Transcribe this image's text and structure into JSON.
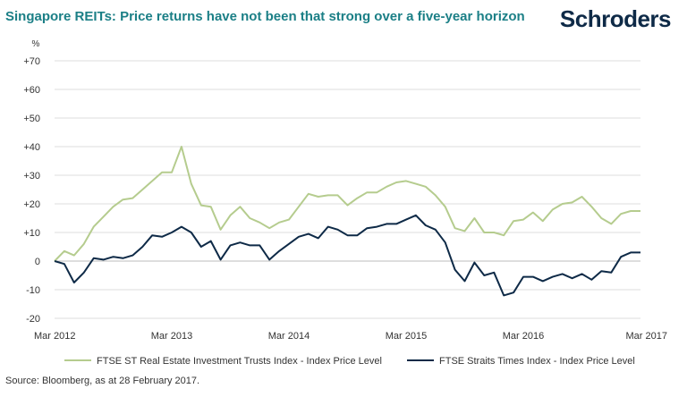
{
  "header": {
    "title": "Singapore REITs: Price returns have not been that strong over a five-year horizon",
    "brand": "Schroders"
  },
  "footer": {
    "source": "Source: Bloomberg, as at 28 February 2017."
  },
  "chart_data": {
    "type": "line",
    "title": "Singapore REITs: Price returns have not been that strong over a five-year horizon",
    "ylabel": "%",
    "ylim": [
      -20,
      70
    ],
    "yticks": [
      -20,
      -10,
      0,
      10,
      20,
      30,
      40,
      50,
      60,
      70
    ],
    "ytick_labels": [
      "-20",
      "-10",
      "0",
      "+10",
      "+20",
      "+30",
      "+40",
      "+50",
      "+60",
      "+70"
    ],
    "xlim": [
      "2012-03",
      "2017-03"
    ],
    "xticks": [
      "2012-03",
      "2013-03",
      "2014-03",
      "2015-03",
      "2016-03",
      "2017-03"
    ],
    "xtick_labels": [
      "Mar 2012",
      "Mar 2013",
      "Mar 2014",
      "Mar 2015",
      "Mar 2016",
      "Mar 2017"
    ],
    "grid": "horizontal",
    "legend_position": "bottom",
    "x": [
      "2012-03",
      "2012-04",
      "2012-05",
      "2012-06",
      "2012-07",
      "2012-08",
      "2012-09",
      "2012-10",
      "2012-11",
      "2012-12",
      "2013-01",
      "2013-02",
      "2013-03",
      "2013-04",
      "2013-05",
      "2013-06",
      "2013-07",
      "2013-08",
      "2013-09",
      "2013-10",
      "2013-11",
      "2013-12",
      "2014-01",
      "2014-02",
      "2014-03",
      "2014-04",
      "2014-05",
      "2014-06",
      "2014-07",
      "2014-08",
      "2014-09",
      "2014-10",
      "2014-11",
      "2014-12",
      "2015-01",
      "2015-02",
      "2015-03",
      "2015-04",
      "2015-05",
      "2015-06",
      "2015-07",
      "2015-08",
      "2015-09",
      "2015-10",
      "2015-11",
      "2015-12",
      "2016-01",
      "2016-02",
      "2016-03",
      "2016-04",
      "2016-05",
      "2016-06",
      "2016-07",
      "2016-08",
      "2016-09",
      "2016-10",
      "2016-11",
      "2016-12",
      "2017-01",
      "2017-02",
      "2017-03"
    ],
    "series": [
      {
        "name": "FTSE ST Real Estate Investment Trusts Index - Index Price Level",
        "color": "#b5cc8e",
        "values": [
          0,
          3.5,
          2,
          6,
          12,
          15.5,
          19,
          21.5,
          22,
          25,
          28,
          31,
          31,
          40,
          27,
          19.5,
          19,
          11,
          16,
          19,
          15,
          13.5,
          11.5,
          13.5,
          14.5,
          19,
          23.5,
          22.5,
          23,
          23,
          19.5,
          22,
          24,
          24,
          26,
          27.5,
          28,
          27,
          26,
          23,
          19,
          11.5,
          10.5,
          15,
          10,
          10,
          9,
          14,
          14.5,
          17,
          14,
          18,
          20,
          20.5,
          22.5,
          19,
          15,
          13,
          16.5,
          17.5,
          17.5
        ]
      },
      {
        "name": "FTSE Straits Times Index - Index Price Level",
        "color": "#0e2a47",
        "values": [
          0,
          -1,
          -7.5,
          -4,
          1,
          0.5,
          1.5,
          1,
          2,
          5,
          9,
          8.5,
          10,
          12,
          10,
          5,
          7,
          0.5,
          5.5,
          6.5,
          5.5,
          5.5,
          0.5,
          3.5,
          6,
          8.5,
          9.5,
          8,
          12,
          11,
          9,
          9,
          11.5,
          12,
          13,
          13,
          14.5,
          16,
          12.5,
          11,
          6.5,
          -3,
          -7,
          -0.5,
          -5,
          -4,
          -12,
          -11,
          -5.5,
          -5.5,
          -7,
          -5.5,
          -4.5,
          -6,
          -4.5,
          -6.5,
          -3.5,
          -4,
          1.5,
          3,
          3
        ]
      }
    ]
  }
}
